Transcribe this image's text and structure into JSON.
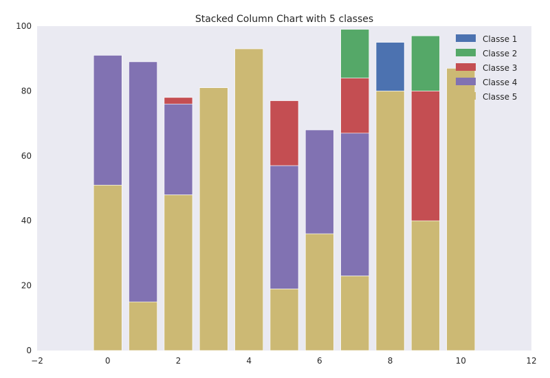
{
  "chart_data": {
    "type": "bar",
    "stacked": true,
    "title": "Stacked Column Chart with 5 classes",
    "xlabel": "",
    "ylabel": "",
    "xlim": [
      -2,
      12
    ],
    "ylim": [
      0,
      100
    ],
    "xticks": [
      -2,
      0,
      2,
      4,
      6,
      8,
      10,
      12
    ],
    "yticks": [
      0,
      20,
      40,
      60,
      80,
      100
    ],
    "x": [
      0,
      1,
      2,
      3,
      4,
      5,
      6,
      7,
      8,
      9,
      10
    ],
    "bar_width": 0.8,
    "grid": false,
    "legend_position": "top-right",
    "background": "#eaeaf2",
    "series": [
      {
        "name": "Classe 5",
        "color": "#ccb974",
        "values": [
          51,
          15,
          48,
          81,
          93,
          19,
          36,
          23,
          80,
          40,
          87
        ]
      },
      {
        "name": "Classe 4",
        "color": "#8172b2",
        "values": [
          40,
          74,
          28,
          0,
          0,
          38,
          32,
          44,
          0,
          0,
          0
        ]
      },
      {
        "name": "Classe 3",
        "color": "#c44e52",
        "values": [
          0,
          0,
          2,
          0,
          0,
          20,
          0,
          17,
          0,
          40,
          0
        ]
      },
      {
        "name": "Classe 2",
        "color": "#55a868",
        "values": [
          0,
          0,
          0,
          0,
          0,
          0,
          0,
          15,
          0,
          17,
          0
        ]
      },
      {
        "name": "Classe 1",
        "color": "#4c72b0",
        "values": [
          0,
          0,
          0,
          0,
          0,
          0,
          0,
          0,
          15,
          0,
          0
        ]
      }
    ],
    "legend_order": [
      "Classe 1",
      "Classe 2",
      "Classe 3",
      "Classe 4",
      "Classe 5"
    ]
  }
}
